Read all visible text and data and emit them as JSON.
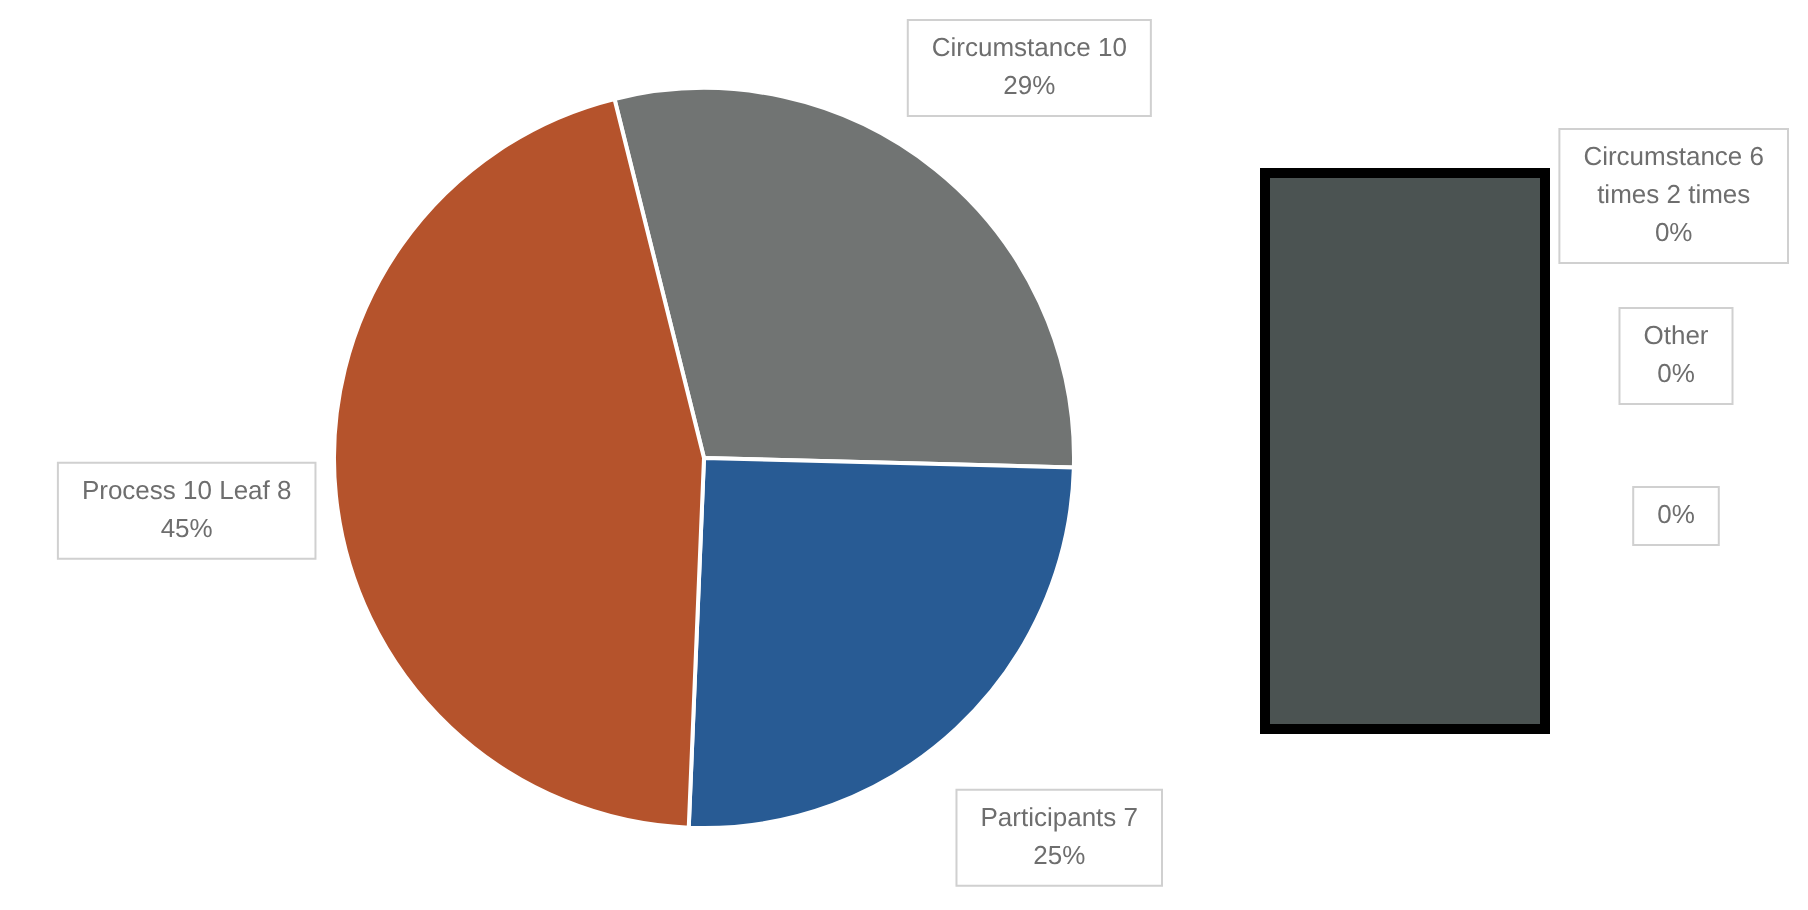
{
  "chart_data": {
    "type": "pie",
    "categories": [
      "Circumstance 10",
      "Circumstance 6 times 2 times",
      "Other",
      null,
      "Participants 7",
      "Process 10 Leaf 8"
    ],
    "values": [
      29,
      0,
      0,
      0,
      25,
      45
    ],
    "value_labels": [
      "29%",
      "0%",
      "0%",
      "0%",
      "25%",
      "45%"
    ],
    "colors": [
      "#717473",
      "#4a5352",
      "#5a6b7a",
      "#8a8f94",
      "#285b94",
      "#b5532c"
    ],
    "legend": false
  }
}
